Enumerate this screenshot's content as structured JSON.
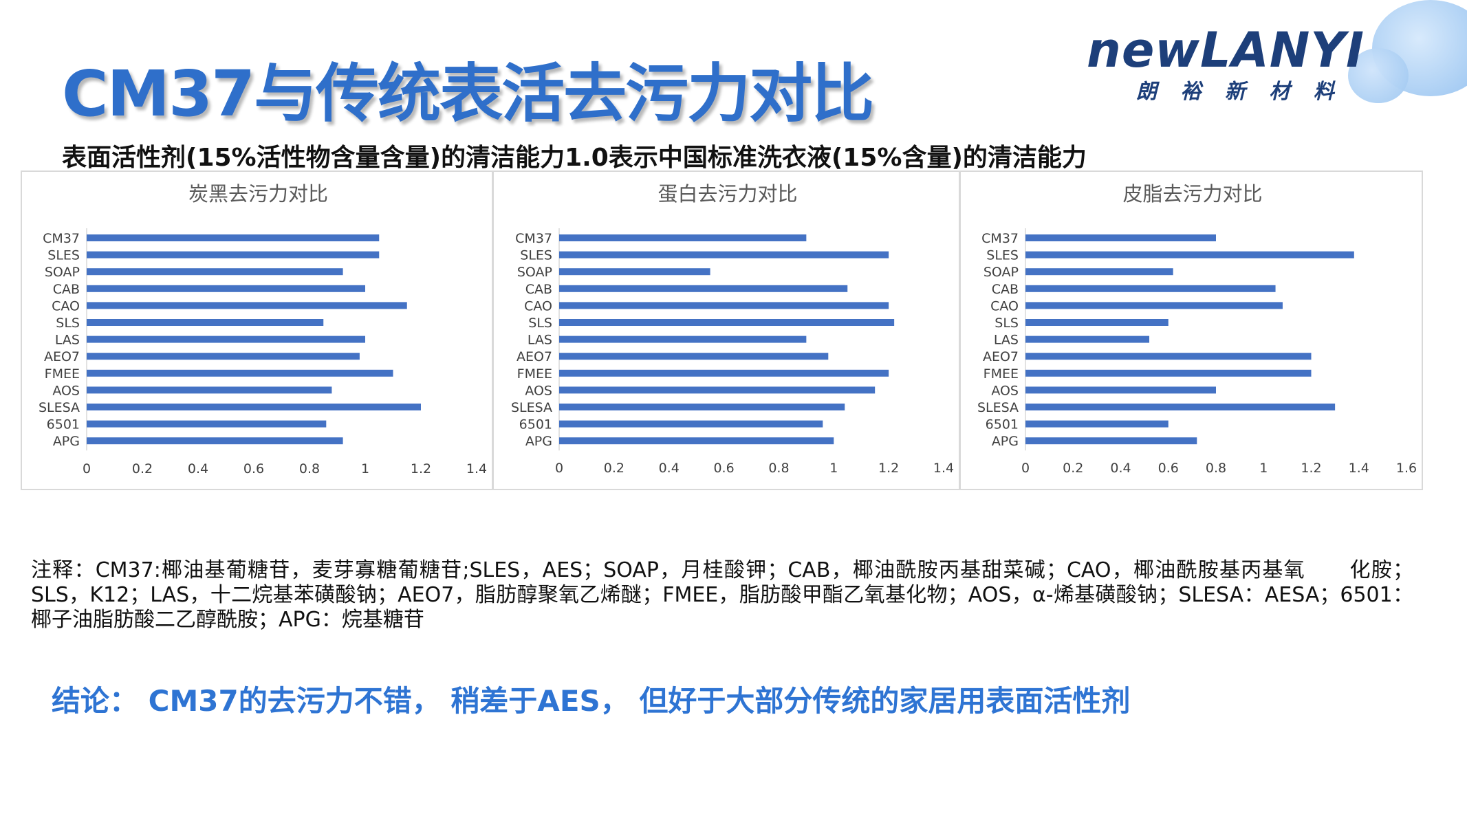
{
  "slide": {
    "title": "CM37与传统表活去污力对比",
    "subtitle": "表面活性剂(15%活性物含量含量)的清洁能力1.0表示中国标准洗衣液(15%含量)的清洁能力",
    "notes": "注释：CM37:椰油基葡糖苷，麦芽寡糖葡糖苷;SLES，AES；SOAP，月桂酸钾；CAB，椰油酰胺丙基甜菜碱；CAO，椰油酰胺基丙基氧      化胺；SLS，K12；LAS，十二烷基苯磺酸钠；AEO7，脂肪醇聚氧乙烯醚；FMEE，脂肪酸甲酯乙氧基化物；AOS，α-烯基磺酸钠；SLESA：AESA；6501：椰子油脂肪酸二乙醇酰胺；APG：烷基糖苷",
    "conclusion": "结论： CM37的去污力不错， 稍差于AES， 但好于大部分传统的家居用表面活性剂"
  },
  "logo": {
    "name": "newLANYI",
    "chinese": "朗 裕 新 材 料"
  },
  "colors": {
    "bar": "#4472c4",
    "title": "#2f6fca",
    "conclusion": "#2e74d3",
    "gridline": "#d9d9d9"
  },
  "chart_data": [
    {
      "type": "bar",
      "orientation": "horizontal",
      "title": "炭黑去污力对比",
      "categories": [
        "CM37",
        "SLES",
        "SOAP",
        "CAB",
        "CAO",
        "SLS",
        "LAS",
        "AEO7",
        "FMEE",
        "AOS",
        "SLESA",
        "6501",
        "APG"
      ],
      "values": [
        1.05,
        1.05,
        0.92,
        1.0,
        1.15,
        0.85,
        1.0,
        0.98,
        1.1,
        0.88,
        1.2,
        0.86,
        0.92
      ],
      "xlim": [
        0,
        1.4
      ],
      "xticks": [
        "0",
        "0.2",
        "0.4",
        "0.6",
        "0.8",
        "1",
        "1.2",
        "1.4"
      ],
      "grid": false,
      "legend": "none"
    },
    {
      "type": "bar",
      "orientation": "horizontal",
      "title": "蛋白去污力对比",
      "categories": [
        "CM37",
        "SLES",
        "SOAP",
        "CAB",
        "CAO",
        "SLS",
        "LAS",
        "AEO7",
        "FMEE",
        "AOS",
        "SLESA",
        "6501",
        "APG"
      ],
      "values": [
        0.9,
        1.2,
        0.55,
        1.05,
        1.2,
        1.22,
        0.9,
        0.98,
        1.2,
        1.15,
        1.04,
        0.96,
        1.0
      ],
      "xlim": [
        0,
        1.4
      ],
      "xticks": [
        "0",
        "0.2",
        "0.4",
        "0.6",
        "0.8",
        "1",
        "1.2",
        "1.4"
      ],
      "grid": false,
      "legend": "none"
    },
    {
      "type": "bar",
      "orientation": "horizontal",
      "title": "皮脂去污力对比",
      "categories": [
        "CM37",
        "SLES",
        "SOAP",
        "CAB",
        "CAO",
        "SLS",
        "LAS",
        "AEO7",
        "FMEE",
        "AOS",
        "SLESA",
        "6501",
        "APG"
      ],
      "values": [
        0.8,
        1.38,
        0.62,
        1.05,
        1.08,
        0.6,
        0.52,
        1.2,
        1.2,
        0.8,
        1.3,
        0.6,
        0.72
      ],
      "xlim": [
        0,
        1.6
      ],
      "xticks": [
        "0",
        "0.2",
        "0.4",
        "0.6",
        "0.8",
        "1",
        "1.2",
        "1.4",
        "1.6"
      ],
      "grid": false,
      "legend": "none"
    }
  ]
}
